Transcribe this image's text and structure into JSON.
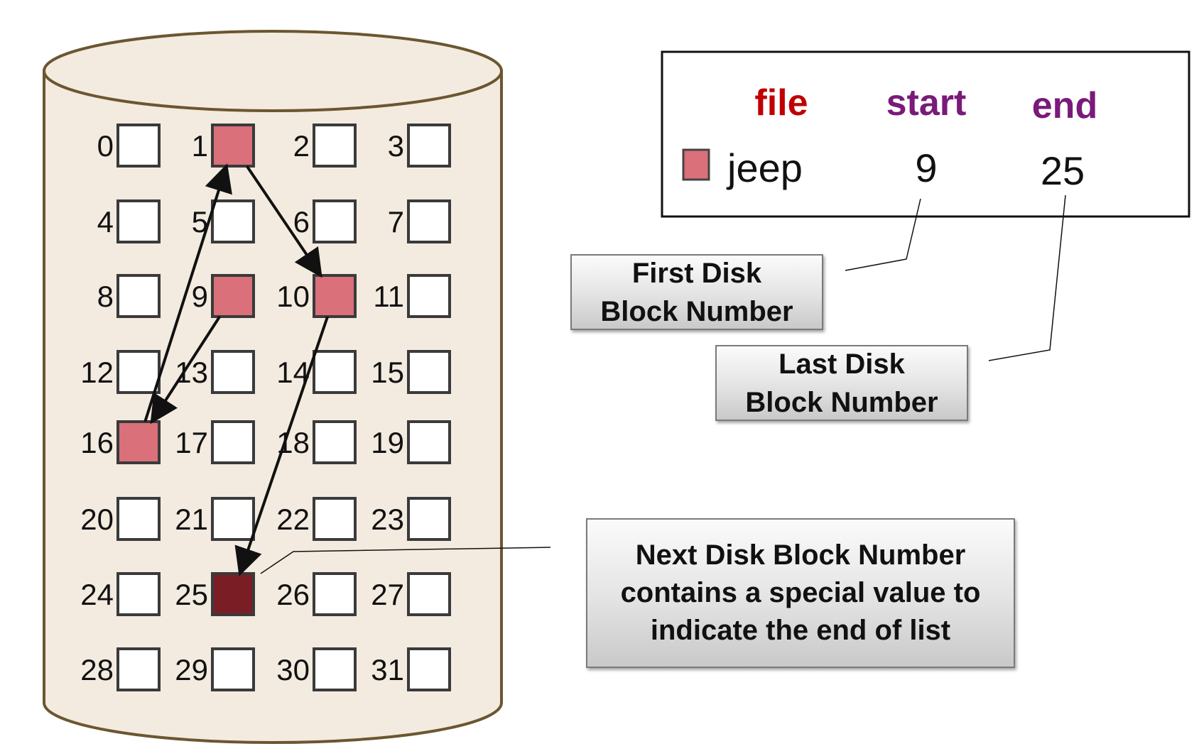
{
  "disk": {
    "blocks": [
      "0",
      "1",
      "2",
      "3",
      "4",
      "5",
      "6",
      "7",
      "8",
      "9",
      "10",
      "11",
      "12",
      "13",
      "14",
      "15",
      "16",
      "17",
      "18",
      "19",
      "20",
      "21",
      "22",
      "23",
      "24",
      "25",
      "26",
      "27",
      "28",
      "29",
      "30",
      "31"
    ],
    "allocated_blocks": [
      1,
      9,
      10,
      16
    ],
    "end_block": 25,
    "chain": [
      9,
      16,
      1,
      10,
      25
    ]
  },
  "directory": {
    "headers": {
      "file": "file",
      "start": "start",
      "end": "end"
    },
    "entry": {
      "file": "jeep",
      "start": "9",
      "end": "25"
    }
  },
  "callouts": {
    "first": "First Disk\nBlock Number",
    "last": "Last Disk\nBlock Number",
    "next": "Next Disk Block Number\ncontains a special value to\nindicate the end of list"
  },
  "colors": {
    "cylinder_fill": "#f3ebe0",
    "cylinder_stroke": "#6b5630",
    "allocated_block": "#d9707a",
    "end_block": "#7a1d25",
    "file_header": "#c00000",
    "start_end_header": "#7a1a7a"
  }
}
